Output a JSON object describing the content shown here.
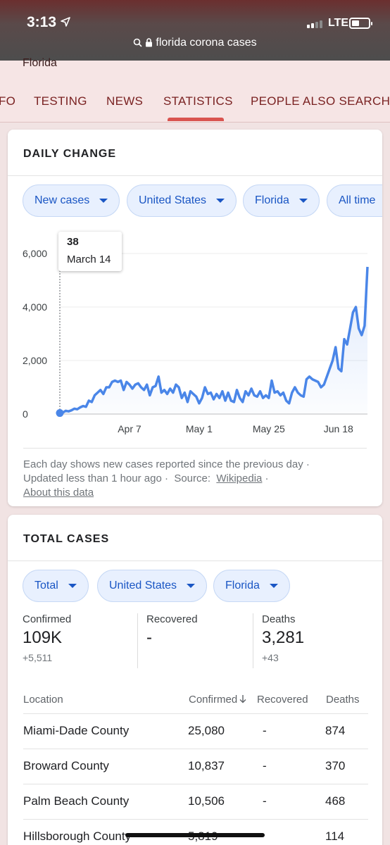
{
  "status": {
    "time": "3:13",
    "network": "LTE"
  },
  "url": {
    "query": "florida corona cases"
  },
  "header": {
    "place": "Florida",
    "tabs": [
      "FO",
      "TESTING",
      "NEWS",
      "STATISTICS",
      "PEOPLE ALSO SEARCH F"
    ],
    "active_tab": "STATISTICS"
  },
  "daily_change": {
    "title": "DAILY CHANGE",
    "chips": [
      "New cases",
      "United States",
      "Florida",
      "All time"
    ],
    "tooltip": {
      "value": "38",
      "date": "March 14"
    },
    "footnote": {
      "line1": "Each day shows new cases reported since the previous day ·",
      "updated": "Updated less than 1 hour ago",
      "source_label": "Source:",
      "source_link": "Wikipedia",
      "about": "About this data"
    }
  },
  "chart_data": {
    "type": "area",
    "x_ticks": [
      "Apr 7",
      "May 1",
      "May 25",
      "Jun 18"
    ],
    "y_ticks": [
      "0",
      "2,000",
      "4,000",
      "6,000"
    ],
    "ylim": [
      0,
      6000
    ],
    "color": "#4a86e8",
    "start_date": "March 14",
    "values": [
      38,
      50,
      120,
      100,
      140,
      200,
      180,
      250,
      300,
      270,
      500,
      450,
      700,
      800,
      900,
      750,
      1000,
      1000,
      1200,
      1250,
      1200,
      1250,
      900,
      1200,
      1100,
      950,
      1100,
      1150,
      1000,
      900,
      1100,
      700,
      1000,
      1050,
      1400,
      800,
      900,
      750,
      950,
      800,
      1100,
      1000,
      600,
      800,
      450,
      850,
      750,
      650,
      400,
      600,
      1000,
      750,
      800,
      550,
      750,
      600,
      850,
      500,
      800,
      500,
      450,
      900,
      600,
      450,
      850,
      700,
      950,
      700,
      650,
      850,
      600,
      700,
      600,
      1250,
      800,
      850,
      700,
      800,
      500,
      400,
      800,
      1000,
      800,
      700,
      650,
      1300,
      1400,
      1300,
      1250,
      1200,
      1000,
      1100,
      1400,
      1700,
      2000,
      2500,
      1700,
      1600,
      2800,
      2600,
      3200,
      3800,
      4000,
      3200,
      2950,
      3300,
      5500
    ]
  },
  "total_cases": {
    "title": "TOTAL CASES",
    "chips": [
      "Total",
      "United States",
      "Florida"
    ],
    "stats": [
      {
        "label": "Confirmed",
        "value": "109K",
        "delta": "+5,511"
      },
      {
        "label": "Recovered",
        "value": "-",
        "delta": ""
      },
      {
        "label": "Deaths",
        "value": "3,281",
        "delta": "+43"
      }
    ],
    "columns": [
      "Location",
      "Confirmed",
      "Recovered",
      "Deaths"
    ],
    "rows": [
      {
        "location": "Miami-Dade County",
        "confirmed": "25,080",
        "recovered": "-",
        "deaths": "874"
      },
      {
        "location": "Broward County",
        "confirmed": "10,837",
        "recovered": "-",
        "deaths": "370"
      },
      {
        "location": "Palm Beach County",
        "confirmed": "10,506",
        "recovered": "-",
        "deaths": "468"
      },
      {
        "location": "Hillsborough County",
        "confirmed": "5,819",
        "recovered": "",
        "deaths": "114"
      }
    ]
  }
}
